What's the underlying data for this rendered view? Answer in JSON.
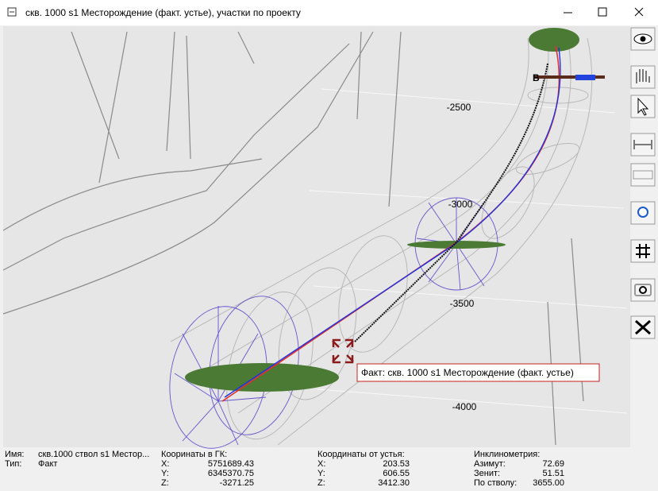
{
  "window": {
    "title": "скв. 1000 s1 Месторождение (факт. устье), участки по проекту"
  },
  "view": {
    "depth_labels": [
      "-2500",
      "-3000",
      "-3500",
      "-4000"
    ],
    "tooltip": "Факт: скв. 1000 s1 Месторождение (факт. устье)"
  },
  "info": {
    "name_label": "Имя:",
    "name": "скв.1000 ствол s1 Местор...",
    "type_label": "Тип:",
    "type": "Факт",
    "groups": [
      {
        "title": "Кооринаты в ГК:",
        "rows": [
          {
            "label": "X:",
            "value": "5751689.43"
          },
          {
            "label": "Y:",
            "value": "6345370.75"
          },
          {
            "label": "Z:",
            "value": "-3271.25"
          }
        ]
      },
      {
        "title": "Координаты от устья:",
        "rows": [
          {
            "label": "X:",
            "value": "203.53"
          },
          {
            "label": "Y:",
            "value": "606.55"
          },
          {
            "label": "Z:",
            "value": "3412.30"
          }
        ]
      },
      {
        "title": "Инклинометрия:",
        "rows": [
          {
            "label": "Азимут:",
            "value": "72.69"
          },
          {
            "label": "Зенит:",
            "value": "51.51"
          },
          {
            "label": "По стволу:",
            "value": "3655.00"
          }
        ]
      }
    ]
  }
}
